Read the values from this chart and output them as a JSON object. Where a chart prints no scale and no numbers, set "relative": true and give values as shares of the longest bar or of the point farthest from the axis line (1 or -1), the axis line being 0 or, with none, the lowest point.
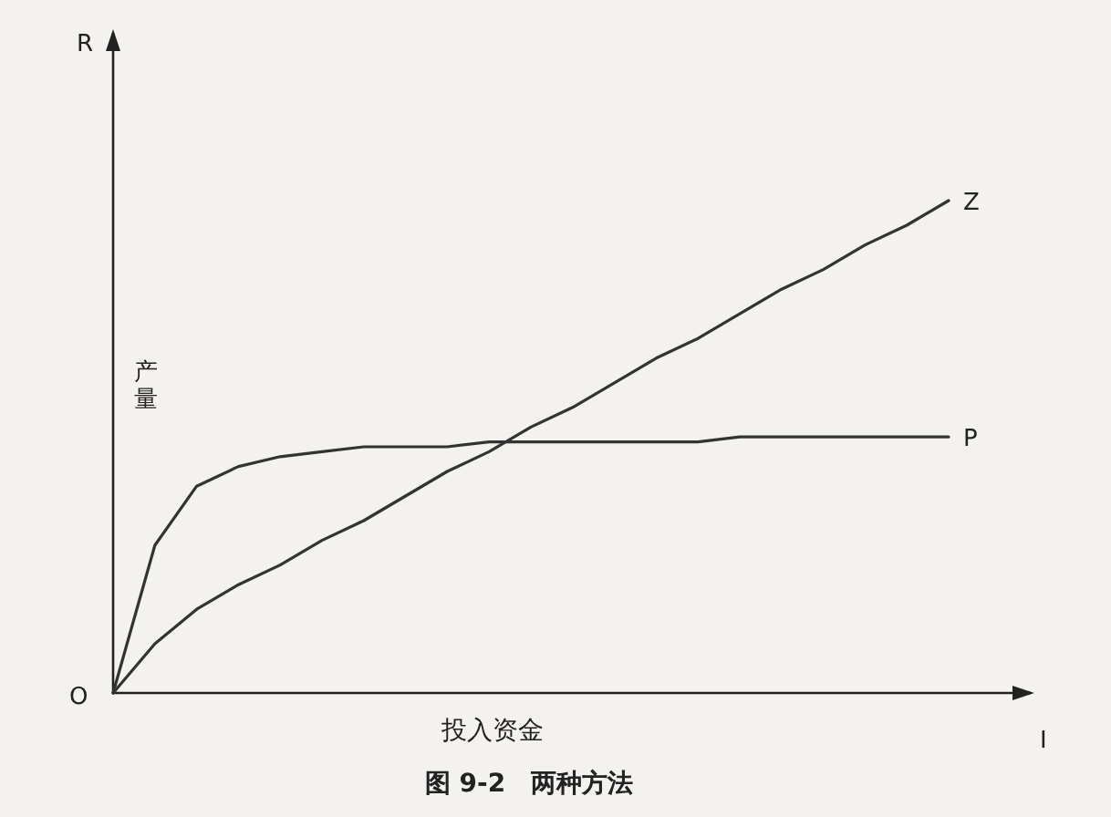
{
  "chart_data": {
    "type": "line",
    "title": "图 9-2　两种方法",
    "xlabel": "投入资金",
    "ylabel": "产量",
    "relative": true,
    "categories": [
      null,
      null,
      null,
      null,
      null,
      null,
      null,
      null,
      null,
      null,
      null,
      null,
      null,
      null,
      null,
      null,
      null,
      null,
      null,
      null,
      null
    ],
    "series": [
      {
        "name": "Z",
        "color": "#333333",
        "values": [
          0,
          0.1,
          0.17,
          0.22,
          0.26,
          0.31,
          0.35,
          0.4,
          0.45,
          0.49,
          0.54,
          0.58,
          0.63,
          0.68,
          0.72,
          0.77,
          0.82,
          0.86,
          0.91,
          0.95,
          1
        ]
      },
      {
        "name": "P",
        "color": "#333333",
        "values": [
          0,
          0.3,
          0.42,
          0.46,
          0.48,
          0.49,
          0.5,
          0.5,
          0.5,
          0.51,
          0.51,
          0.51,
          0.51,
          0.51,
          0.51,
          0.52,
          0.52,
          0.52,
          0.52,
          0.52,
          0.52
        ]
      }
    ],
    "annotations": [
      "R",
      "I",
      "O"
    ]
  }
}
